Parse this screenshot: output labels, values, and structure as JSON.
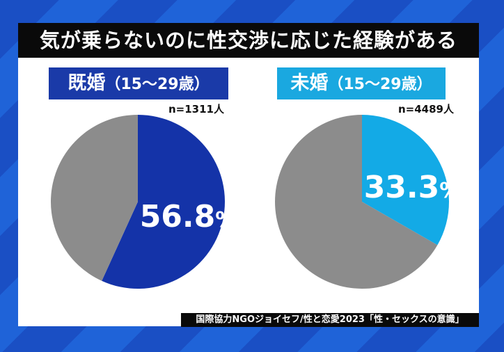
{
  "chart_data": [
    {
      "type": "pie",
      "title": "既婚",
      "subtitle": "（15〜29歳）",
      "n": "n=1311人",
      "slices": [
        {
          "label": "56.8%",
          "value": 56.8,
          "color": "#1433a8"
        },
        {
          "value": 43.2,
          "color": "#8c8c8c"
        }
      ]
    },
    {
      "type": "pie",
      "title": "未婚",
      "subtitle": "（15〜29歳）",
      "n": "n=4489人",
      "slices": [
        {
          "label": "33.3%",
          "value": 33.3,
          "color": "#13aae6"
        },
        {
          "value": 66.7,
          "color": "#8c8c8c"
        }
      ]
    }
  ],
  "header": {
    "title": "気が乗らないのに性交渉に応じた経験がある"
  },
  "source": "国際協力NGOジョイセフ/性と恋愛2023「性・セックスの意識」",
  "colors": {
    "married": "#1433a8",
    "unmarried": "#13aae6",
    "other": "#8c8c8c"
  }
}
